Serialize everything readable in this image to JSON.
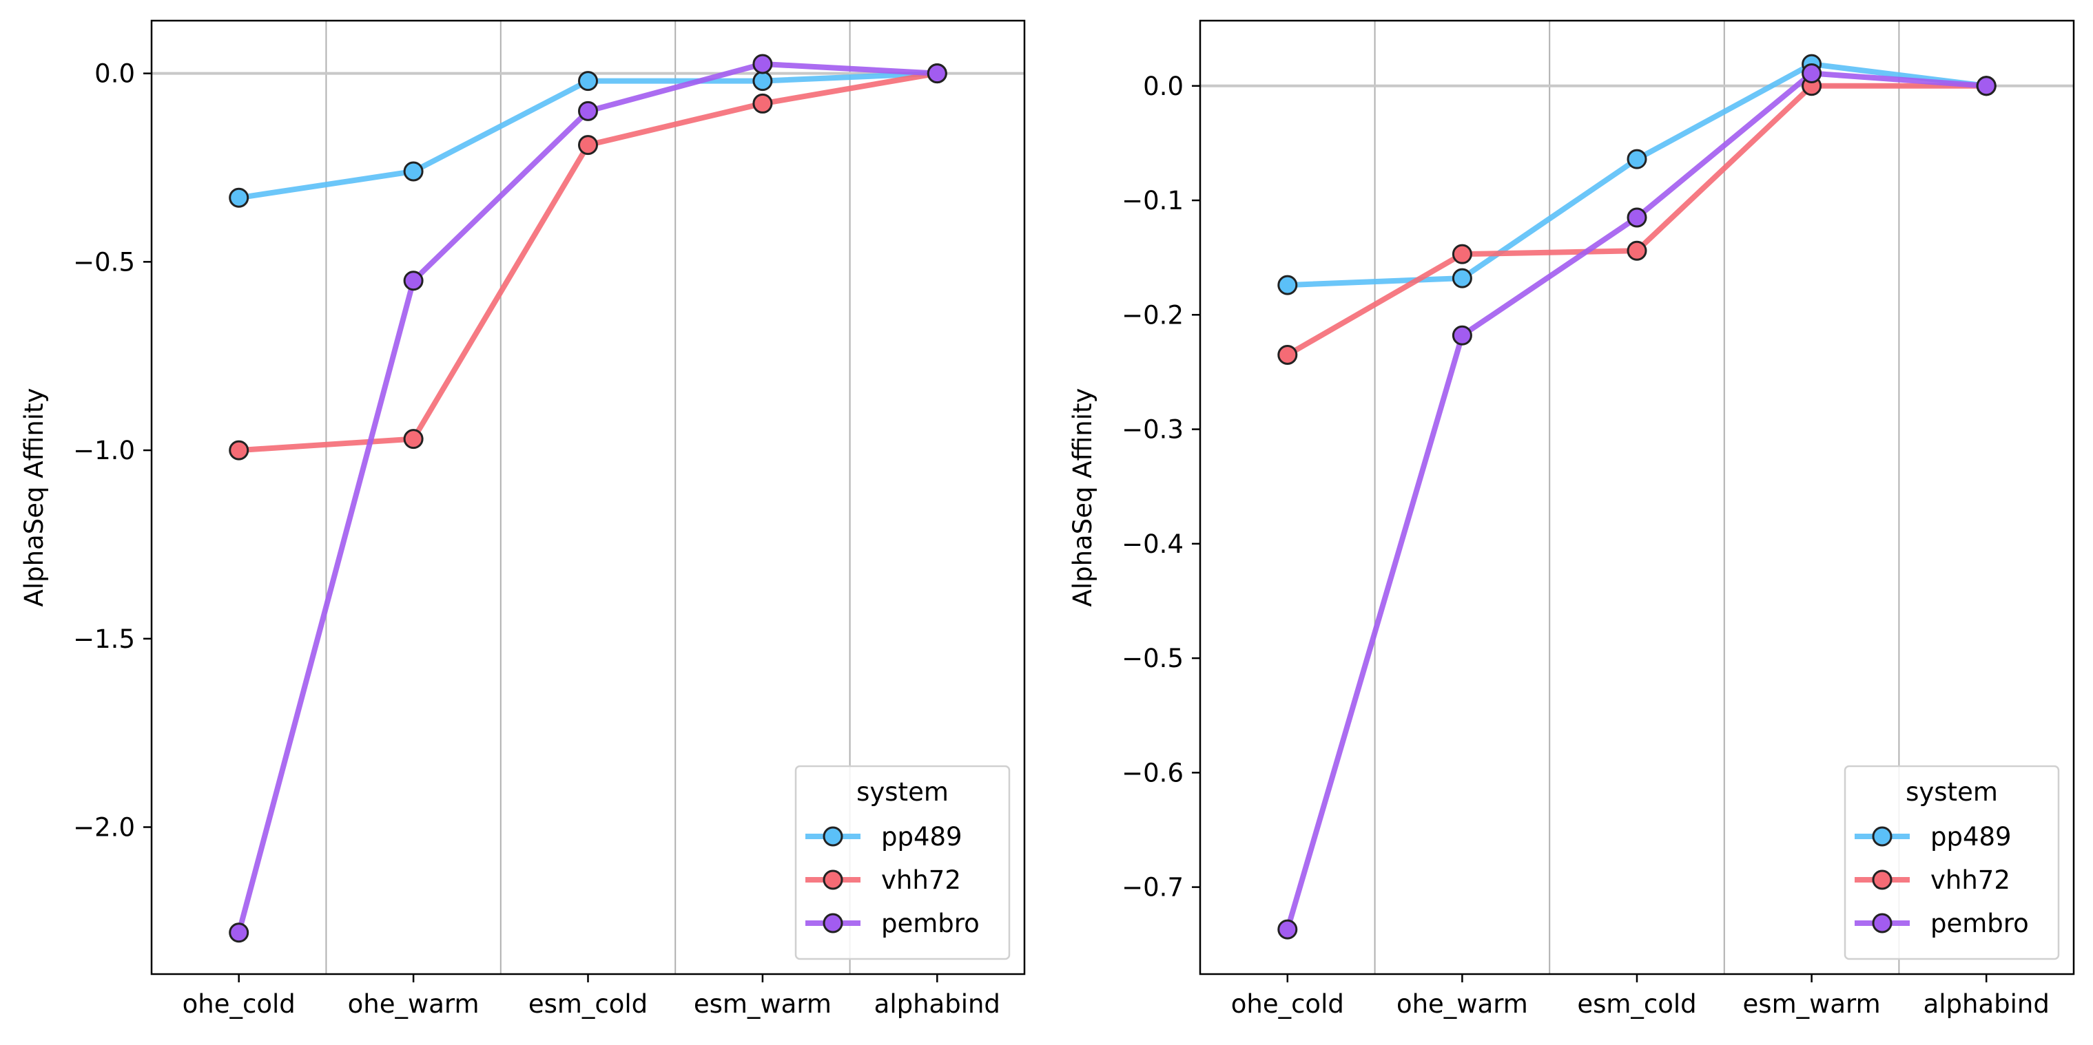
{
  "chart_data": [
    {
      "type": "line",
      "categories": [
        "ohe_cold",
        "ohe_warm",
        "esm_cold",
        "esm_warm",
        "alphabind"
      ],
      "ylabel": "AlphaSeq Affinity",
      "xlabel": "",
      "ylim": [
        -2.39,
        0.14
      ],
      "yticks": [
        0.0,
        -0.5,
        -1.0,
        -1.5,
        -2.0
      ],
      "ytick_labels": [
        "0.0",
        "−0.5",
        "−1.0",
        "−1.5",
        "−2.0"
      ],
      "reference_line": 0.0,
      "grid": "vertical separators between categories",
      "legend": {
        "title": "system",
        "position": "lower-right"
      },
      "series": [
        {
          "name": "pp489",
          "color": "#5bc0f8",
          "values": [
            -0.33,
            -0.26,
            -0.02,
            -0.02,
            0.0
          ]
        },
        {
          "name": "vhh72",
          "color": "#f56b75",
          "values": [
            -1.0,
            -0.97,
            -0.19,
            -0.08,
            0.0
          ]
        },
        {
          "name": "pembro",
          "color": "#a25cf0",
          "values": [
            -2.28,
            -0.55,
            -0.1,
            0.025,
            0.0
          ]
        }
      ]
    },
    {
      "type": "line",
      "categories": [
        "ohe_cold",
        "ohe_warm",
        "esm_cold",
        "esm_warm",
        "alphabind"
      ],
      "ylabel": "AlphaSeq Affinity",
      "xlabel": "",
      "ylim": [
        -0.776,
        0.057
      ],
      "yticks": [
        0.0,
        -0.1,
        -0.2,
        -0.3,
        -0.4,
        -0.5,
        -0.6,
        -0.7
      ],
      "ytick_labels": [
        "0.0",
        "−0.1",
        "−0.2",
        "−0.3",
        "−0.4",
        "−0.5",
        "−0.6",
        "−0.7"
      ],
      "reference_line": 0.0,
      "grid": "vertical separators between categories",
      "legend": {
        "title": "system",
        "position": "lower-right"
      },
      "series": [
        {
          "name": "pp489",
          "color": "#5bc0f8",
          "values": [
            -0.174,
            -0.168,
            -0.064,
            0.019,
            0.0
          ]
        },
        {
          "name": "vhh72",
          "color": "#f56b75",
          "values": [
            -0.235,
            -0.147,
            -0.144,
            0.0,
            0.0
          ]
        },
        {
          "name": "pembro",
          "color": "#a25cf0",
          "values": [
            -0.737,
            -0.218,
            -0.115,
            0.011,
            0.0
          ]
        }
      ]
    }
  ]
}
